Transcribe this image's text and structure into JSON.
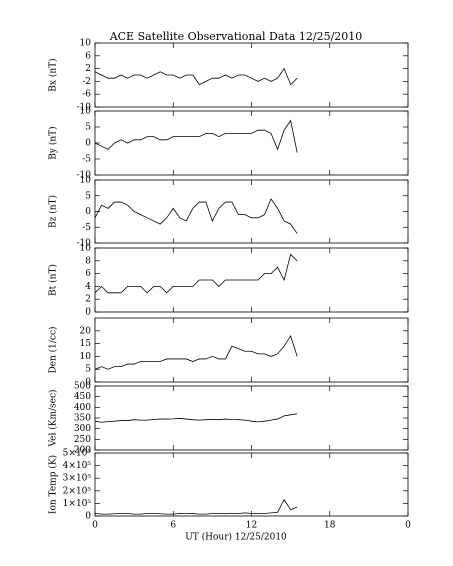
{
  "chart_data": [
    {
      "type": "line",
      "title": "ACE Satellite Observational Data   12/25/2010",
      "y_label": "Bx (nT)",
      "color": "#000000",
      "x": [
        0,
        0.5,
        1,
        1.5,
        2,
        2.5,
        3,
        3.5,
        4,
        4.5,
        5,
        5.5,
        6,
        6.5,
        7,
        7.5,
        8,
        8.5,
        9,
        9.5,
        10,
        10.5,
        11,
        11.5,
        12,
        12.5,
        13,
        13.5,
        14,
        14.5,
        15,
        15.5
      ],
      "values": [
        1,
        0,
        -1,
        -1,
        0,
        -1,
        0,
        0,
        -1,
        0,
        1,
        0,
        0,
        -1,
        0,
        0,
        -3,
        -2,
        -1,
        -1,
        0,
        -1,
        0,
        0,
        -1,
        -2,
        -1,
        -2,
        -1,
        2,
        -3,
        -1
      ],
      "xlim": [
        0,
        24
      ],
      "ylim": [
        -10,
        10
      ],
      "yticks": [
        -10,
        -6,
        -2,
        2,
        6,
        10
      ]
    },
    {
      "type": "line",
      "y_label": "By (nT)",
      "color": "#000000",
      "x": [
        0,
        0.5,
        1,
        1.5,
        2,
        2.5,
        3,
        3.5,
        4,
        4.5,
        5,
        5.5,
        6,
        6.5,
        7,
        7.5,
        8,
        8.5,
        9,
        9.5,
        10,
        10.5,
        11,
        11.5,
        12,
        12.5,
        13,
        13.5,
        14,
        14.5,
        15,
        15.5
      ],
      "values": [
        0,
        -1,
        -2,
        0,
        1,
        0,
        1,
        1,
        2,
        2,
        1,
        1,
        2,
        2,
        2,
        2,
        2,
        3,
        3,
        2,
        3,
        3,
        3,
        3,
        3,
        4,
        4,
        3,
        -2,
        4,
        7,
        -3
      ],
      "xlim": [
        0,
        24
      ],
      "ylim": [
        -10,
        10
      ],
      "yticks": [
        -10,
        -5,
        0,
        5,
        10
      ]
    },
    {
      "type": "line",
      "y_label": "Bz (nT)",
      "color": "#000000",
      "x": [
        0,
        0.5,
        1,
        1.5,
        2,
        2.5,
        3,
        3.5,
        4,
        4.5,
        5,
        5.5,
        6,
        6.5,
        7,
        7.5,
        8,
        8.5,
        9,
        9.5,
        10,
        10.5,
        11,
        11.5,
        12,
        12.5,
        13,
        13.5,
        14,
        14.5,
        15,
        15.5
      ],
      "values": [
        -2,
        2,
        1,
        3,
        3,
        2,
        0,
        -1,
        -2,
        -3,
        -4,
        -2,
        1,
        -2,
        -3,
        1,
        3,
        3,
        -3,
        1,
        3,
        3,
        -1,
        -1,
        -2,
        -2,
        -1,
        4,
        1,
        -3,
        -4,
        -7
      ],
      "xlim": [
        0,
        24
      ],
      "ylim": [
        -10,
        10
      ],
      "yticks": [
        -10,
        -5,
        0,
        5,
        10
      ]
    },
    {
      "type": "line",
      "y_label": "Bt (nT)",
      "color": "#000000",
      "x": [
        0,
        0.5,
        1,
        1.5,
        2,
        2.5,
        3,
        3.5,
        4,
        4.5,
        5,
        5.5,
        6,
        6.5,
        7,
        7.5,
        8,
        8.5,
        9,
        9.5,
        10,
        10.5,
        11,
        11.5,
        12,
        12.5,
        13,
        13.5,
        14,
        14.5,
        15,
        15.5
      ],
      "values": [
        3,
        4,
        3,
        3,
        3,
        4,
        4,
        4,
        3,
        4,
        4,
        3,
        4,
        4,
        4,
        4,
        5,
        5,
        5,
        4,
        5,
        5,
        5,
        5,
        5,
        5,
        6,
        6,
        7,
        5,
        9,
        8
      ],
      "xlim": [
        0,
        24
      ],
      "ylim": [
        0,
        10
      ],
      "yticks": [
        0,
        2,
        4,
        6,
        8,
        10
      ]
    },
    {
      "type": "line",
      "y_label": "Den (1/cc)",
      "color": "#000000",
      "x": [
        0,
        0.5,
        1,
        1.5,
        2,
        2.5,
        3,
        3.5,
        4,
        4.5,
        5,
        5.5,
        6,
        6.5,
        7,
        7.5,
        8,
        8.5,
        9,
        9.5,
        10,
        10.5,
        11,
        11.5,
        12,
        12.5,
        13,
        13.5,
        14,
        14.5,
        15,
        15.5
      ],
      "values": [
        5,
        6,
        5,
        6,
        6,
        7,
        7,
        8,
        8,
        8,
        8,
        9,
        9,
        9,
        9,
        8,
        9,
        9,
        10,
        9,
        9,
        14,
        13,
        12,
        12,
        11,
        11,
        10,
        11,
        14,
        18,
        10
      ],
      "xlim": [
        0,
        24
      ],
      "ylim": [
        0,
        25
      ],
      "yticks": [
        0,
        5,
        10,
        15,
        20
      ]
    },
    {
      "type": "line",
      "y_label": "Vel (Km/sec)",
      "color": "#000000",
      "x": [
        0,
        0.5,
        1,
        1.5,
        2,
        2.5,
        3,
        3.5,
        4,
        4.5,
        5,
        5.5,
        6,
        6.5,
        7,
        7.5,
        8,
        8.5,
        9,
        9.5,
        10,
        10.5,
        11,
        11.5,
        12,
        12.5,
        13,
        13.5,
        14,
        14.5,
        15,
        15.5
      ],
      "values": [
        335,
        330,
        333,
        335,
        338,
        338,
        342,
        340,
        340,
        343,
        345,
        345,
        346,
        348,
        345,
        342,
        340,
        342,
        343,
        342,
        345,
        343,
        342,
        340,
        335,
        332,
        335,
        340,
        345,
        360,
        365,
        370
      ],
      "xlim": [
        0,
        24
      ],
      "ylim": [
        200,
        500
      ],
      "yticks": [
        200,
        250,
        300,
        350,
        400,
        450,
        500
      ]
    },
    {
      "type": "line",
      "y_label": "Ion Temp (K)",
      "x_label": "UT (Hour)  12/25/2010",
      "color": "#000000",
      "x": [
        0,
        0.5,
        1,
        1.5,
        2,
        2.5,
        3,
        3.5,
        4,
        4.5,
        5,
        5.5,
        6,
        6.5,
        7,
        7.5,
        8,
        8.5,
        9,
        9.5,
        10,
        10.5,
        11,
        11.5,
        12,
        12.5,
        13,
        13.5,
        14,
        14.5,
        15,
        15.5
      ],
      "values": [
        20000,
        15000,
        15000,
        18000,
        20000,
        20000,
        15000,
        15000,
        20000,
        20000,
        18000,
        15000,
        15000,
        20000,
        18000,
        20000,
        15000,
        15000,
        20000,
        20000,
        18000,
        20000,
        20000,
        25000,
        20000,
        20000,
        20000,
        25000,
        30000,
        130000,
        50000,
        70000
      ],
      "xlim": [
        0,
        24
      ],
      "ylim": [
        0,
        500000
      ],
      "yticks": [
        0,
        {
          "value": 100000,
          "label": "1×10⁵"
        },
        {
          "value": 200000,
          "label": "2×10⁵"
        },
        {
          "value": 300000,
          "label": "3×10⁵"
        },
        {
          "value": 400000,
          "label": "4×10⁵"
        },
        {
          "value": 500000,
          "label": "5×10⁵"
        }
      ],
      "xticks": [
        0,
        6,
        12,
        18,
        {
          "value": 24,
          "label": "0"
        }
      ]
    }
  ]
}
